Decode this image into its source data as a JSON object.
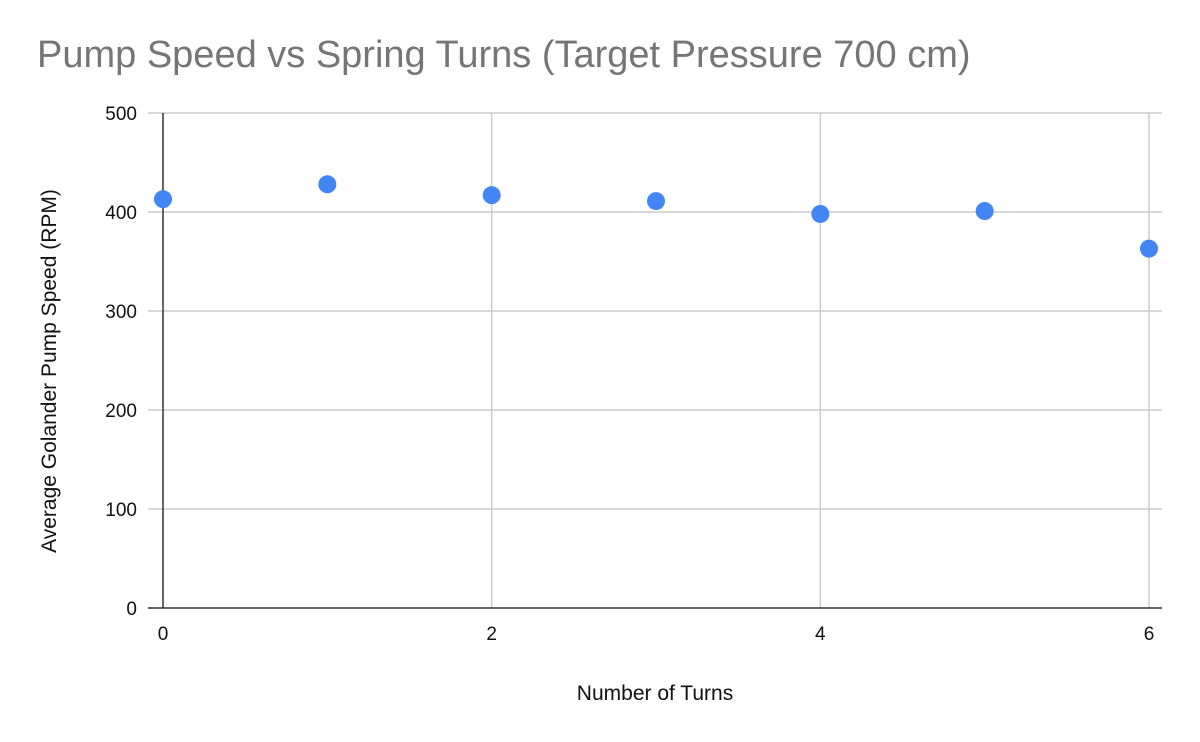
{
  "chart_data": {
    "type": "scatter",
    "title": "Pump Speed vs Spring Turns (Target Pressure 700 cm)",
    "xlabel": "Number of Turns",
    "ylabel": "Average Golander Pump Speed (RPM)",
    "xlim": [
      0,
      6
    ],
    "ylim": [
      0,
      500
    ],
    "xticks": [
      0,
      2,
      4,
      6
    ],
    "yticks": [
      0,
      100,
      200,
      300,
      400,
      500
    ],
    "grid": true,
    "legend": "none",
    "colors": {
      "points": "#4285f4",
      "grid": "#cccccc",
      "axis": "#333333",
      "title": "#757575"
    },
    "series": [
      {
        "x": [
          0,
          1,
          2,
          3,
          4,
          5,
          6
        ],
        "y": [
          413,
          428,
          417,
          411,
          398,
          401,
          363
        ]
      }
    ]
  }
}
